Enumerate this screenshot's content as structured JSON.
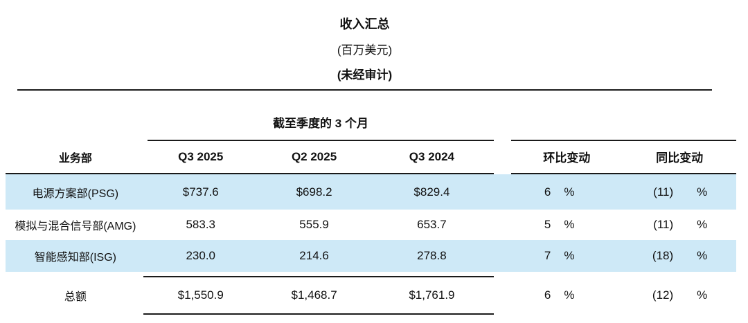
{
  "document": {
    "title": "收入汇总",
    "subtitle_units": "(百万美元)",
    "subtitle_audit": "(未经审计)"
  },
  "table": {
    "period_group_header": "截至季度的 3 个月",
    "columns": {
      "business_unit": "业务部",
      "q3_2025": "Q3 2025",
      "q2_2025": "Q2 2025",
      "q3_2024": "Q3 2024",
      "qoq_change": "环比变动",
      "yoy_change": "同比变动"
    },
    "rows": [
      {
        "label": "电源方案部(PSG)",
        "q3_2025": "$737.6",
        "q2_2025": "$698.2",
        "q3_2024": "$829.4",
        "qoq": "6",
        "qoq_unit": "%",
        "yoy": "(11)",
        "yoy_unit": "%",
        "highlighted": true
      },
      {
        "label": "模拟与混合信号部(AMG)",
        "q3_2025": "583.3",
        "q2_2025": "555.9",
        "q3_2024": "653.7",
        "qoq": "5",
        "qoq_unit": "%",
        "yoy": "(11)",
        "yoy_unit": "%",
        "highlighted": false
      },
      {
        "label": "智能感知部(ISG)",
        "q3_2025": "230.0",
        "q2_2025": "214.6",
        "q3_2024": "278.8",
        "qoq": "7",
        "qoq_unit": "%",
        "yoy": "(18)",
        "yoy_unit": "%",
        "highlighted": true
      }
    ],
    "total": {
      "label": "总额",
      "q3_2025": "$1,550.9",
      "q2_2025": "$1,468.7",
      "q3_2024": "$1,761.9",
      "qoq": "6",
      "qoq_unit": "%",
      "yoy": "(12)",
      "yoy_unit": "%"
    }
  },
  "colors": {
    "row_highlight": "#cee9f7",
    "rule": "#1a1a1a",
    "text": "#111111"
  }
}
